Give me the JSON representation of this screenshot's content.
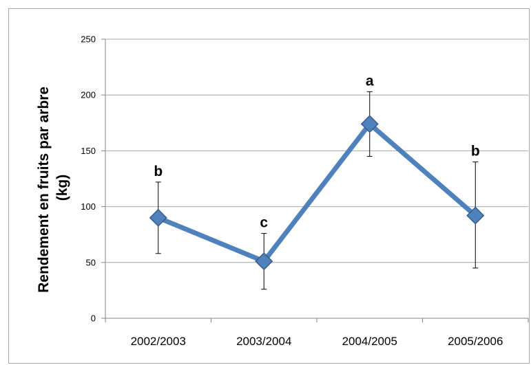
{
  "chart_data": {
    "type": "line",
    "categories": [
      "2002/2003",
      "2003/2004",
      "2004/2005",
      "2005/2006"
    ],
    "series": [
      {
        "values": [
          90,
          51,
          174,
          92
        ],
        "error_upper": [
          122,
          76,
          203,
          140
        ],
        "error_lower": [
          58,
          26,
          145,
          45
        ],
        "color": "#4f81bd",
        "marker": "diamond"
      }
    ],
    "annotations": [
      "b",
      "c",
      "a",
      "b"
    ],
    "title": "",
    "xlabel": "",
    "ylabel_lines": [
      "Rendement en fruits par arbre",
      "(kg)"
    ],
    "ylim": [
      0,
      250
    ],
    "yticks": [
      0,
      50,
      100,
      150,
      200,
      250
    ],
    "grid": true,
    "legend": "none",
    "colors": {
      "series": "#4f81bd",
      "marker_fill": "#4f81bd",
      "marker_edge": "#385d8a",
      "gridline": "#a6a6a6",
      "axis": "#868686",
      "frame": "#a6a6a6"
    }
  }
}
